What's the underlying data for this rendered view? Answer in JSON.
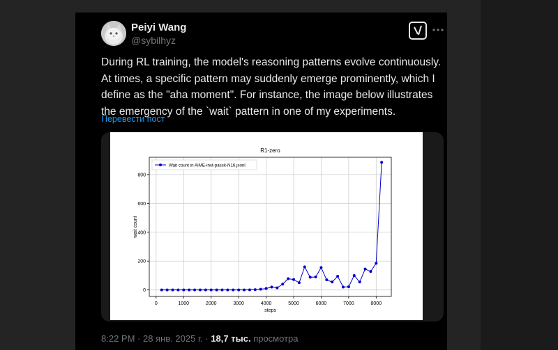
{
  "tweet": {
    "author_name": "Peiyi Wang",
    "author_handle": "@sybilhyz",
    "text": "During RL training, the model's reasoning patterns evolve continuously. At times, a specific pattern may suddenly emerge prominently, which I define as the \"aha moment\". For instance, the image below illustrates the emergency of the `wait` pattern in one of my experiments.",
    "translate_link": "Перевести пост",
    "time": "8:22 PM",
    "date": "28 янв. 2025 г.",
    "separator": "·",
    "views_count": "18,7 тыс.",
    "views_label": "просмотра"
  },
  "icons": {
    "grok": "grok-icon",
    "more": "more-icon",
    "avatar": "avatar-image"
  },
  "colors": {
    "background": "#242424",
    "card": "#000000",
    "text": "#e7e9ea",
    "secondary": "#71767b",
    "link": "#1d9bf0",
    "series": "#0000cc"
  },
  "chart_data": {
    "type": "line",
    "title": "R1-zero",
    "xlabel": "steps",
    "ylabel": "wait count",
    "legend_position": "top-left",
    "grid": true,
    "xlim": [
      -250,
      8550
    ],
    "ylim": [
      -45,
      920
    ],
    "x_ticks": [
      0,
      1000,
      2000,
      3000,
      4000,
      5000,
      6000,
      7000,
      8000
    ],
    "y_ticks": [
      0,
      200,
      400,
      600,
      800
    ],
    "series": [
      {
        "name": "Wait count in AIME-inst-passk-N16.jsonl",
        "color": "#0000cc",
        "x": [
          200,
          400,
          600,
          800,
          1000,
          1200,
          1400,
          1600,
          1800,
          2000,
          2200,
          2400,
          2600,
          2800,
          3000,
          3200,
          3400,
          3600,
          3800,
          4000,
          4200,
          4400,
          4600,
          4800,
          5000,
          5200,
          5400,
          5600,
          5800,
          6000,
          6200,
          6400,
          6600,
          6800,
          7000,
          7200,
          7400,
          7600,
          7800,
          8000,
          8200
        ],
        "y": [
          0,
          0,
          0,
          0,
          0,
          0,
          0,
          0,
          0,
          0,
          0,
          0,
          0,
          0,
          0,
          0,
          1,
          2,
          5,
          10,
          20,
          15,
          40,
          78,
          72,
          50,
          160,
          88,
          90,
          155,
          70,
          55,
          95,
          20,
          22,
          100,
          55,
          145,
          128,
          185,
          885
        ]
      }
    ]
  }
}
